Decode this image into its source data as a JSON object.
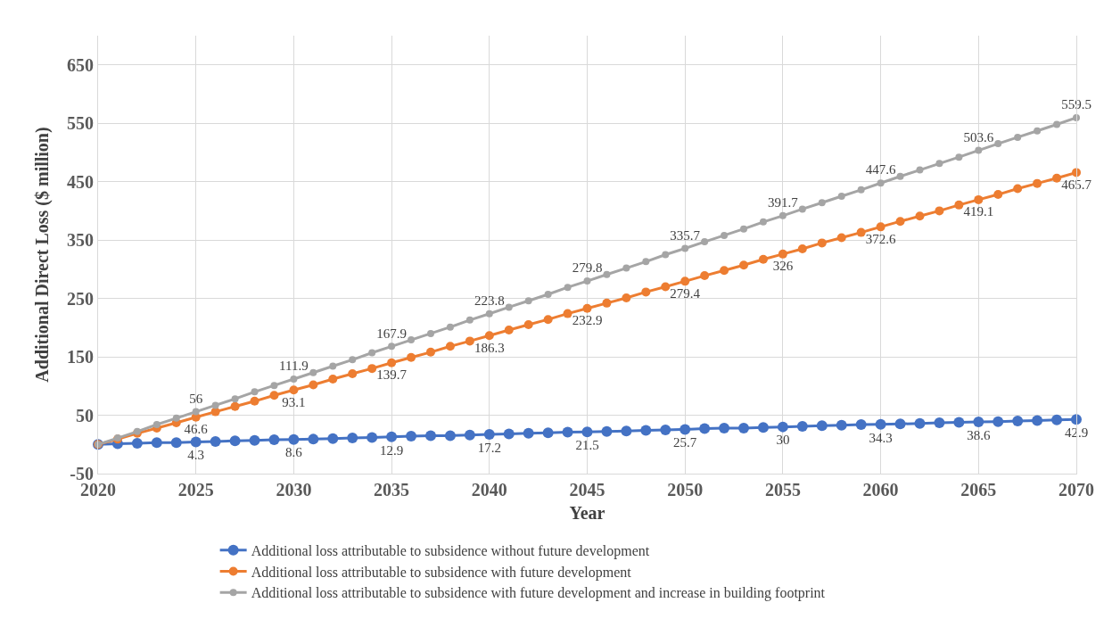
{
  "chart_data": {
    "type": "line",
    "xlabel": "Year",
    "ylabel": "Additional Direct Loss ($ million)",
    "x": [
      2020,
      2021,
      2022,
      2023,
      2024,
      2025,
      2026,
      2027,
      2028,
      2029,
      2030,
      2031,
      2032,
      2033,
      2034,
      2035,
      2036,
      2037,
      2038,
      2039,
      2040,
      2041,
      2042,
      2043,
      2044,
      2045,
      2046,
      2047,
      2048,
      2049,
      2050,
      2051,
      2052,
      2053,
      2054,
      2055,
      2056,
      2057,
      2058,
      2059,
      2060,
      2061,
      2062,
      2063,
      2064,
      2065,
      2066,
      2067,
      2068,
      2069,
      2070
    ],
    "xlim": [
      2020,
      2070
    ],
    "xticks": [
      2020,
      2025,
      2030,
      2035,
      2040,
      2045,
      2050,
      2055,
      2060,
      2065,
      2070
    ],
    "ylim": [
      -50,
      700
    ],
    "yticks": [
      -50,
      50,
      150,
      250,
      350,
      450,
      550,
      650
    ],
    "grid": true,
    "legend": "bottom",
    "marker": "circle",
    "line_style": "solid",
    "series": [
      {
        "name": "Additional loss attributable to subsidence without future development",
        "color": "#4472c4",
        "values": [
          0,
          1,
          2,
          3,
          3,
          4.3,
          5,
          6,
          7,
          8,
          8.6,
          9,
          10,
          11,
          12,
          12.9,
          14,
          15,
          15,
          16,
          17.2,
          18,
          19,
          20,
          21,
          21.5,
          22,
          23,
          24,
          25,
          25.7,
          27,
          28,
          28,
          29,
          30,
          31,
          32,
          33,
          34,
          34.3,
          35,
          36,
          37,
          38,
          38.6,
          39,
          40,
          41,
          42,
          42.9
        ],
        "value_labels": [
          null,
          null,
          null,
          null,
          null,
          "4.3",
          null,
          null,
          null,
          null,
          "8.6",
          null,
          null,
          null,
          null,
          "12.9",
          null,
          null,
          null,
          null,
          "17.2",
          null,
          null,
          null,
          null,
          "21.5",
          null,
          null,
          null,
          null,
          "25.7",
          null,
          null,
          null,
          null,
          "30",
          null,
          null,
          null,
          null,
          "34.3",
          null,
          null,
          null,
          null,
          "38.6",
          null,
          null,
          null,
          null,
          "42.9"
        ]
      },
      {
        "name": "Additional loss attributable to subsidence with future development",
        "color": "#ed7d31",
        "values": [
          0,
          9,
          19,
          28,
          37,
          46.6,
          56,
          65,
          74,
          84,
          93.1,
          102,
          112,
          121,
          130,
          139.7,
          149,
          158,
          168,
          177,
          186.3,
          196,
          205,
          214,
          224,
          232.9,
          242,
          251,
          261,
          270,
          279.4,
          289,
          298,
          307,
          317,
          326,
          335,
          345,
          354,
          363,
          372.6,
          382,
          391,
          400,
          410,
          419.1,
          428,
          438,
          447,
          456,
          465.7
        ],
        "value_labels": [
          null,
          null,
          null,
          null,
          null,
          "46.6",
          null,
          null,
          null,
          null,
          "93.1",
          null,
          null,
          null,
          null,
          "139.7",
          null,
          null,
          null,
          null,
          "186.3",
          null,
          null,
          null,
          null,
          "232.9",
          null,
          null,
          null,
          null,
          "279.4",
          null,
          null,
          null,
          null,
          "326",
          null,
          null,
          null,
          null,
          "372.6",
          null,
          null,
          null,
          null,
          "419.1",
          null,
          null,
          null,
          null,
          "465.7"
        ]
      },
      {
        "name": "Additional loss attributable to subsidence with future development and increase in building footprint",
        "color": "#a5a5a5",
        "values": [
          0,
          11,
          22,
          34,
          45,
          56,
          67,
          78,
          90,
          101,
          111.9,
          123,
          134,
          145,
          157,
          167.9,
          179,
          190,
          201,
          213,
          223.8,
          235,
          246,
          257,
          269,
          279.8,
          291,
          302,
          313,
          325,
          335.7,
          347,
          358,
          369,
          381,
          391.7,
          403,
          414,
          425,
          436,
          447.6,
          459,
          470,
          481,
          492,
          503.6,
          515,
          526,
          537,
          548,
          559.5
        ],
        "value_labels": [
          null,
          null,
          null,
          null,
          null,
          "56",
          null,
          null,
          null,
          null,
          "111.9",
          null,
          null,
          null,
          null,
          "167.9",
          null,
          null,
          null,
          null,
          "223.8",
          null,
          null,
          null,
          null,
          "279.8",
          null,
          null,
          null,
          null,
          "335.7",
          null,
          null,
          null,
          null,
          "391.7",
          null,
          null,
          null,
          null,
          "447.6",
          null,
          null,
          null,
          null,
          "503.6",
          null,
          null,
          null,
          null,
          "559.5"
        ]
      }
    ]
  }
}
